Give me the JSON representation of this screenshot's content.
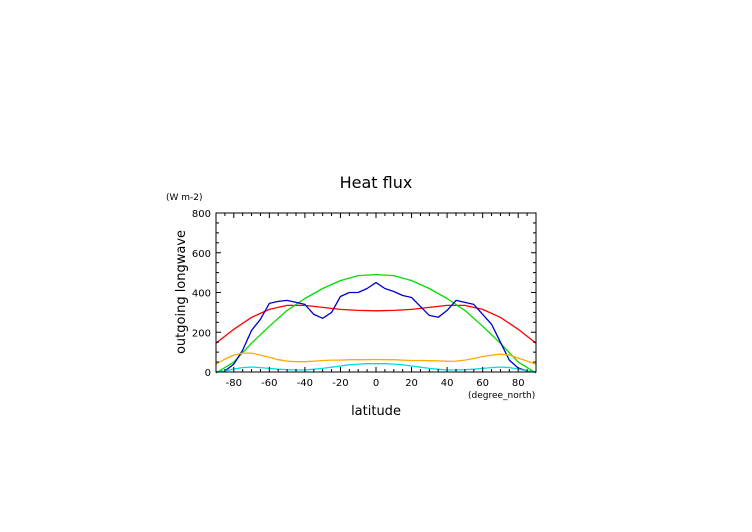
{
  "chart_data": {
    "type": "line",
    "title": "Heat flux",
    "xlabel": "latitude",
    "ylabel": "outgoing longwave",
    "x_units": "(degree_north)",
    "y_units": "(W m-2)",
    "xlim": [
      -90,
      90
    ],
    "ylim": [
      0,
      800
    ],
    "xticks": [
      -80,
      -60,
      -40,
      -20,
      0,
      20,
      40,
      60,
      80
    ],
    "yticks": [
      0,
      200,
      400,
      600,
      800
    ],
    "grid": false,
    "series": [
      {
        "color": "#ff0000",
        "x": [
          -90,
          -80,
          -70,
          -60,
          -50,
          -40,
          -30,
          -20,
          -10,
          0,
          10,
          20,
          30,
          40,
          50,
          60,
          70,
          80,
          90
        ],
        "y": [
          145,
          215,
          275,
          315,
          335,
          335,
          325,
          315,
          310,
          308,
          310,
          315,
          325,
          335,
          335,
          315,
          275,
          215,
          145
        ]
      },
      {
        "color": "#00dd00",
        "x": [
          -90,
          -80,
          -70,
          -60,
          -50,
          -40,
          -30,
          -20,
          -10,
          0,
          10,
          20,
          30,
          40,
          50,
          60,
          70,
          80,
          90
        ],
        "y": [
          -5,
          50,
          145,
          230,
          310,
          370,
          420,
          460,
          485,
          490,
          485,
          460,
          420,
          370,
          310,
          230,
          145,
          50,
          -5
        ]
      },
      {
        "color": "#0000cc",
        "x": [
          -90,
          -85,
          -80,
          -75,
          -70,
          -65,
          -60,
          -55,
          -50,
          -45,
          -40,
          -35,
          -30,
          -25,
          -20,
          -15,
          -10,
          -5,
          0,
          5,
          10,
          15,
          20,
          25,
          30,
          35,
          40,
          45,
          50,
          55,
          60,
          65,
          70,
          75,
          80,
          85,
          90
        ],
        "y": [
          0,
          5,
          40,
          110,
          210,
          265,
          345,
          355,
          360,
          350,
          340,
          290,
          270,
          300,
          380,
          400,
          400,
          420,
          450,
          420,
          405,
          385,
          375,
          330,
          285,
          275,
          310,
          360,
          350,
          340,
          290,
          240,
          150,
          60,
          20,
          5,
          0
        ]
      },
      {
        "color": "#ffaa00",
        "x": [
          -90,
          -85,
          -80,
          -75,
          -70,
          -65,
          -60,
          -55,
          -50,
          -45,
          -40,
          -35,
          -30,
          -25,
          -20,
          -15,
          -10,
          -5,
          0,
          5,
          10,
          15,
          20,
          25,
          30,
          35,
          40,
          45,
          50,
          55,
          60,
          65,
          70,
          75,
          80,
          85,
          90
        ],
        "y": [
          40,
          65,
          85,
          95,
          95,
          85,
          75,
          62,
          55,
          52,
          52,
          55,
          58,
          60,
          60,
          62,
          62,
          62,
          63,
          62,
          62,
          60,
          58,
          58,
          57,
          56,
          54,
          55,
          60,
          68,
          78,
          85,
          90,
          85,
          70,
          55,
          40
        ]
      },
      {
        "color": "#00dddd",
        "x": [
          -90,
          -85,
          -80,
          -75,
          -70,
          -65,
          -60,
          -55,
          -50,
          -45,
          -40,
          -35,
          -30,
          -25,
          -20,
          -15,
          -10,
          -5,
          0,
          5,
          10,
          15,
          20,
          25,
          30,
          35,
          40,
          45,
          50,
          55,
          60,
          65,
          70,
          75,
          80,
          85,
          90
        ],
        "y": [
          0,
          5,
          15,
          22,
          25,
          22,
          18,
          14,
          12,
          10,
          10,
          14,
          18,
          24,
          30,
          36,
          40,
          42,
          42,
          42,
          40,
          36,
          30,
          24,
          18,
          14,
          10,
          10,
          12,
          14,
          18,
          22,
          25,
          22,
          15,
          5,
          0
        ]
      }
    ]
  }
}
